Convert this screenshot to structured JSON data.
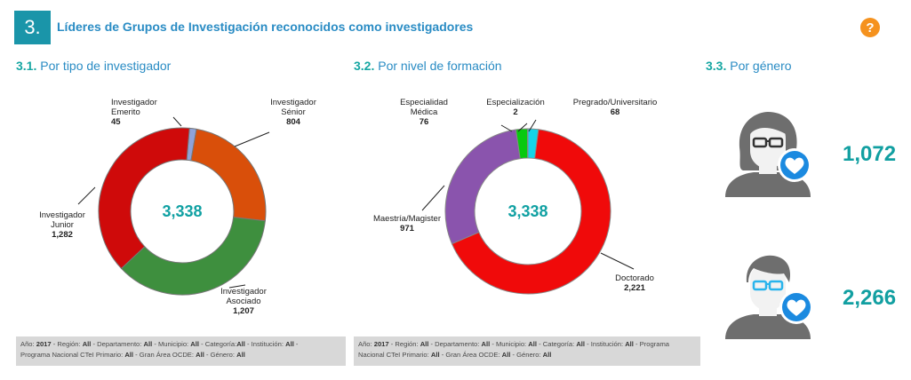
{
  "header": {
    "number": "3.",
    "title": "Líderes de Grupos de Investigación reconocidos como investigadores",
    "help_glyph": "?"
  },
  "sections": [
    {
      "num": "3.1.",
      "title": "Por tipo de investigador"
    },
    {
      "num": "3.2.",
      "title": "Por nivel de formación"
    },
    {
      "num": "3.3.",
      "title": "Por género"
    }
  ],
  "chart_data": [
    {
      "type": "pie",
      "subtype": "donut",
      "center_label": "3,338",
      "slices": [
        {
          "lines": [
            "Investigador",
            "Emerito"
          ],
          "value_label": "45",
          "value": 45,
          "color": "#8fa3d9"
        },
        {
          "lines": [
            "Investigador",
            "Sénior"
          ],
          "value_label": "804",
          "value": 804,
          "color": "#d94f0a"
        },
        {
          "lines": [
            "Investigador",
            "Asociado"
          ],
          "value_label": "1,207",
          "value": 1207,
          "color": "#3e8f3e"
        },
        {
          "lines": [
            "Investigador",
            "Junior"
          ],
          "value_label": "1,282",
          "value": 1282,
          "color": "#cf0a0a"
        }
      ]
    },
    {
      "type": "pie",
      "subtype": "donut",
      "center_label": "3,338",
      "slices": [
        {
          "lines": [
            "Pregrado/Universitario"
          ],
          "value_label": "68",
          "value": 68,
          "color": "#13d4e8"
        },
        {
          "lines": [
            "Doctorado"
          ],
          "value_label": "2,221",
          "value": 2221,
          "color": "#f00a0a"
        },
        {
          "lines": [
            "Maestría/Magister"
          ],
          "value_label": "971",
          "value": 971,
          "color": "#8a54ad"
        },
        {
          "lines": [
            "Especialidad",
            "Médica"
          ],
          "value_label": "76",
          "value": 76,
          "color": "#08c90f"
        },
        {
          "lines": [
            "Especialización"
          ],
          "value_label": "2",
          "value": 2,
          "color": "#1a6e1a"
        }
      ]
    },
    {
      "type": "table",
      "rows": [
        {
          "gender_icon": "female-user-icon",
          "value": 1072,
          "value_label": "1,072"
        },
        {
          "gender_icon": "male-user-icon",
          "value": 2266,
          "value_label": "2,266"
        }
      ]
    }
  ],
  "filters": [
    {
      "parts": [
        [
          "Año: ",
          ""
        ],
        [
          "2017",
          ""
        ],
        [
          " - Región: ",
          ""
        ],
        [
          "All",
          ""
        ],
        [
          " - Departamento: ",
          ""
        ],
        [
          "All",
          ""
        ],
        [
          " - Municipio: ",
          ""
        ],
        [
          "All",
          ""
        ],
        [
          " - Categoría:",
          ""
        ],
        [
          "All",
          ""
        ],
        [
          " - Institución: ",
          ""
        ],
        [
          "All",
          ""
        ],
        [
          " - ",
          ""
        ]
      ],
      "line2": "Programa Nacional CTeI Primario: All - Gran Área OCDE: All - Género: All"
    },
    {
      "parts": [],
      "line2": ""
    }
  ],
  "filter_text": [
    {
      "l1": [
        [
          "Año: ",
          false
        ],
        [
          "2017",
          true
        ],
        [
          " - Región: ",
          false
        ],
        [
          "All",
          true
        ],
        [
          " - Departamento: ",
          false
        ],
        [
          "All",
          true
        ],
        [
          " - Municipio: ",
          false
        ],
        [
          "All",
          true
        ],
        [
          " - Categoría:",
          false
        ],
        [
          "All",
          true
        ],
        [
          " - Institución: ",
          false
        ],
        [
          "All",
          true
        ],
        [
          " -",
          false
        ]
      ],
      "l2": [
        [
          "Programa Nacional CTeI Primario: ",
          false
        ],
        [
          "All",
          true
        ],
        [
          " - Gran Área OCDE: ",
          false
        ],
        [
          "All",
          true
        ],
        [
          " - Género: ",
          false
        ],
        [
          "All",
          true
        ]
      ]
    },
    {
      "l1": [
        [
          "Año: ",
          false
        ],
        [
          "2017",
          true
        ],
        [
          " - Región: ",
          false
        ],
        [
          "All",
          true
        ],
        [
          " - Departamento: ",
          false
        ],
        [
          "All",
          true
        ],
        [
          " - Municipio: ",
          false
        ],
        [
          "All",
          true
        ],
        [
          " - Categoría: ",
          false
        ],
        [
          "All",
          true
        ],
        [
          " - Institución: ",
          false
        ],
        [
          "All",
          true
        ],
        [
          " - Programa",
          false
        ]
      ],
      "l2": [
        [
          "Nacional CTeI Primario: ",
          false
        ],
        [
          "All",
          true
        ],
        [
          " - Gran Área OCDE: ",
          false
        ],
        [
          "All",
          true
        ],
        [
          " - Género: ",
          false
        ],
        [
          "All",
          true
        ]
      ]
    }
  ]
}
